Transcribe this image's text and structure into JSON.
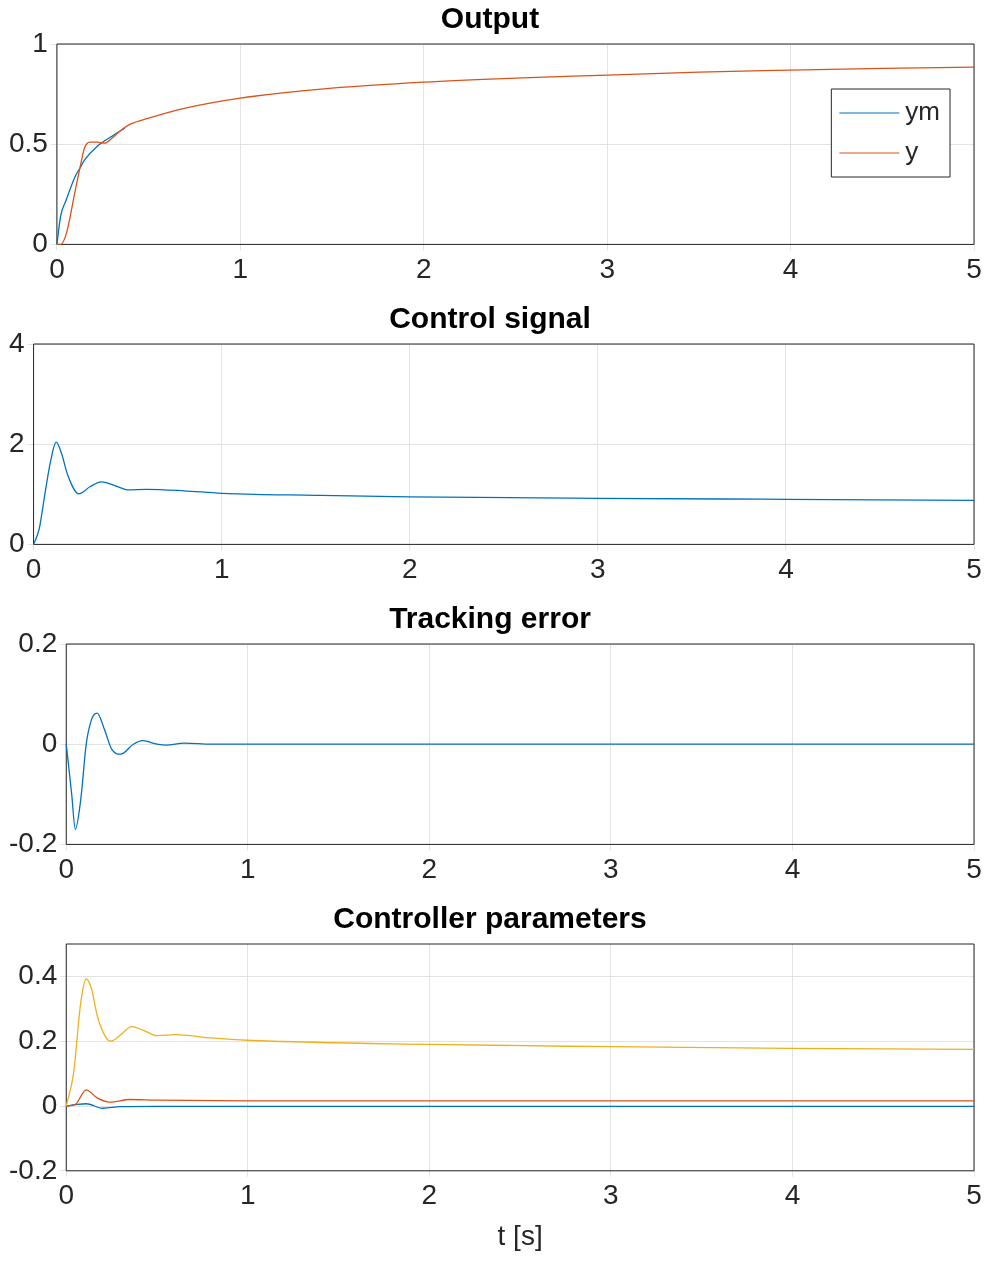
{
  "chart_data": [
    {
      "type": "line",
      "title": "Output",
      "xlim": [
        0,
        5
      ],
      "xticks": [
        0,
        1,
        2,
        3,
        4,
        5
      ],
      "ylim": [
        0,
        1
      ],
      "yticks": [
        0,
        0.5,
        1
      ],
      "grid": true,
      "legend": "top right",
      "series": [
        {
          "name": "ym",
          "color": "#0072bd",
          "x": [
            0,
            0.02,
            0.05,
            0.1,
            0.125,
            0.15,
            0.22,
            0.3,
            0.37
          ],
          "values": [
            0,
            0.14,
            0.22,
            0.34,
            0.38,
            0.42,
            0.49,
            0.54,
            0.58
          ]
        },
        {
          "name": "y",
          "color": "#d95319",
          "x": [
            0,
            0.02,
            0.05,
            0.1,
            0.125,
            0.15,
            0.18,
            0.22,
            0.26,
            0.3,
            0.35,
            0.4,
            0.5,
            0.7,
            1,
            1.5,
            2,
            2.5,
            3,
            3.5,
            4,
            4.5,
            5
          ],
          "values": [
            0,
            0,
            0.05,
            0.27,
            0.38,
            0.48,
            0.51,
            0.51,
            0.505,
            0.53,
            0.57,
            0.6,
            0.63,
            0.68,
            0.73,
            0.78,
            0.81,
            0.83,
            0.845,
            0.86,
            0.87,
            0.878,
            0.885
          ]
        }
      ]
    },
    {
      "type": "line",
      "title": "Control signal",
      "xlim": [
        0,
        5
      ],
      "xticks": [
        0,
        1,
        2,
        3,
        4,
        5
      ],
      "ylim": [
        0,
        4
      ],
      "yticks": [
        0,
        2,
        4
      ],
      "grid": true,
      "series": [
        {
          "color": "#0072bd",
          "x": [
            0,
            0.03,
            0.06,
            0.09,
            0.12,
            0.15,
            0.18,
            0.24,
            0.3,
            0.36,
            0.45,
            0.5,
            0.6,
            0.8,
            1,
            1.5,
            2,
            3,
            4,
            5
          ],
          "values": [
            0,
            0.31,
            1.0,
            1.65,
            2.04,
            1.8,
            1.4,
            1.01,
            1.15,
            1.25,
            1.15,
            1.09,
            1.1,
            1.07,
            1.02,
            0.98,
            0.95,
            0.92,
            0.9,
            0.88
          ]
        }
      ]
    },
    {
      "type": "line",
      "title": "Tracking error",
      "xlim": [
        0,
        5
      ],
      "xticks": [
        0,
        1,
        2,
        3,
        4,
        5
      ],
      "ylim": [
        -0.2,
        0.2
      ],
      "yticks": [
        -0.2,
        0,
        0.2
      ],
      "grid": true,
      "series": [
        {
          "color": "#0072bd",
          "x": [
            0,
            0.03,
            0.05,
            0.08,
            0.11,
            0.14,
            0.17,
            0.21,
            0.25,
            0.3,
            0.37,
            0.42,
            0.5,
            0.55,
            0.65,
            0.8,
            1,
            2,
            3,
            4,
            5
          ],
          "values": [
            0,
            -0.1,
            -0.17,
            -0.11,
            0,
            0.05,
            0.062,
            0.03,
            -0.01,
            -0.02,
            0,
            0.007,
            0,
            -0.002,
            0.002,
            0,
            0,
            0,
            0,
            0,
            0
          ]
        }
      ]
    },
    {
      "type": "line",
      "title": "Controller parameters",
      "xlabel": "t [s]",
      "xlim": [
        0,
        5
      ],
      "xticks": [
        0,
        1,
        2,
        3,
        4,
        5
      ],
      "ylim": [
        -0.2,
        0.5
      ],
      "yticks": [
        -0.2,
        0,
        0.2,
        0.4
      ],
      "grid": true,
      "series": [
        {
          "color": "#0072bd",
          "x": [
            0,
            0.05,
            0.11,
            0.2,
            0.3,
            0.5,
            1,
            2,
            3,
            4,
            5
          ],
          "values": [
            0,
            0.004,
            0.007,
            -0.007,
            -0.002,
            -0.001,
            -0.001,
            -0.001,
            -0.001,
            -0.001,
            -0.001
          ]
        },
        {
          "color": "#d95319",
          "x": [
            0,
            0.05,
            0.11,
            0.17,
            0.24,
            0.35,
            0.5,
            1,
            2,
            3,
            4,
            5
          ],
          "values": [
            0,
            0.005,
            0.05,
            0.025,
            0.012,
            0.02,
            0.018,
            0.016,
            0.016,
            0.016,
            0.016,
            0.016
          ]
        },
        {
          "color": "#edb120",
          "x": [
            0,
            0.04,
            0.08,
            0.11,
            0.14,
            0.17,
            0.22,
            0.245,
            0.3,
            0.36,
            0.42,
            0.5,
            0.6,
            0.8,
            1,
            2,
            3,
            4,
            5
          ],
          "values": [
            0,
            0.1,
            0.32,
            0.392,
            0.36,
            0.28,
            0.21,
            0.2,
            0.22,
            0.245,
            0.235,
            0.217,
            0.22,
            0.21,
            0.203,
            0.19,
            0.183,
            0.178,
            0.175
          ]
        }
      ]
    }
  ]
}
